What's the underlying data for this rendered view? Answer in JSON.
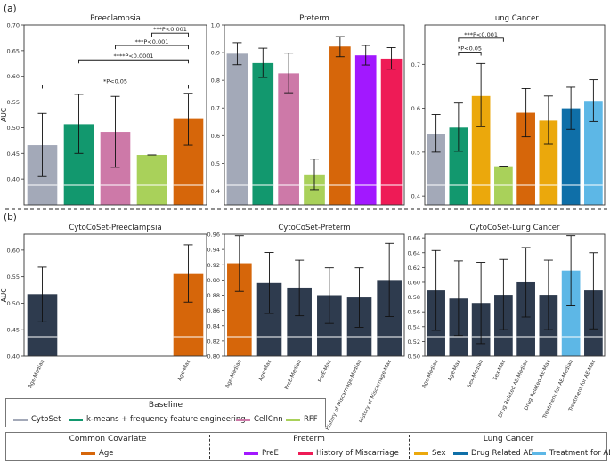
{
  "panel_labels": {
    "a": "(a)",
    "b": "(b)"
  },
  "ylabel": "AUC",
  "colors": {
    "CytoSet": "#a3a9b8",
    "kmeans": "#12986e",
    "CellCnn": "#cd79a8",
    "RFF": "#a9d15a",
    "Age": "#d6660a",
    "PreE": "#a218ff",
    "HistMisc": "#ee1b56",
    "Sex": "#eba80c",
    "DrugAE": "#0f6fa8",
    "TreatAE": "#5db7e6",
    "Dark": "#2e3b4e"
  },
  "chart_data": [
    {
      "id": "a1",
      "type": "bar",
      "title": "Preeclampsia",
      "ylim": [
        0.35,
        0.7
      ],
      "yticks": [
        "0.40",
        "0.45",
        "0.50",
        "0.55",
        "0.60",
        "0.65",
        "0.70"
      ],
      "yticks_v": [
        0.4,
        0.45,
        0.5,
        0.55,
        0.6,
        0.65,
        0.7
      ],
      "bars": [
        {
          "color": "CytoSet",
          "value": 0.466,
          "lo": 0.405,
          "hi": 0.528
        },
        {
          "color": "kmeans",
          "value": 0.507,
          "lo": 0.45,
          "hi": 0.565
        },
        {
          "color": "CellCnn",
          "value": 0.492,
          "lo": 0.423,
          "hi": 0.561
        },
        {
          "color": "RFF",
          "value": 0.447,
          "lo": 0.447,
          "hi": 0.447
        },
        {
          "color": "Age",
          "value": 0.517,
          "lo": 0.466,
          "hi": 0.567
        }
      ],
      "sig": [
        {
          "from": 3,
          "to": 4,
          "y": 0.684,
          "label": "***P<0.001"
        },
        {
          "from": 2,
          "to": 4,
          "y": 0.66,
          "label": "***P<0.001"
        },
        {
          "from": 1,
          "to": 4,
          "y": 0.632,
          "label": "****P<0.0001"
        },
        {
          "from": 0,
          "to": 4,
          "y": 0.583,
          "label": "*P<0.05"
        }
      ]
    },
    {
      "id": "a2",
      "type": "bar",
      "title": "Preterm",
      "ylim": [
        0.35,
        1.0
      ],
      "yticks": [
        "0.4",
        "0.5",
        "0.6",
        "0.7",
        "0.8",
        "0.9",
        "1.0"
      ],
      "yticks_v": [
        0.4,
        0.5,
        0.6,
        0.7,
        0.8,
        0.9,
        1.0
      ],
      "bars": [
        {
          "color": "CytoSet",
          "value": 0.896,
          "lo": 0.856,
          "hi": 0.936
        },
        {
          "color": "kmeans",
          "value": 0.862,
          "lo": 0.81,
          "hi": 0.916
        },
        {
          "color": "CellCnn",
          "value": 0.825,
          "lo": 0.755,
          "hi": 0.898
        },
        {
          "color": "RFF",
          "value": 0.46,
          "lo": 0.405,
          "hi": 0.515
        },
        {
          "color": "Age",
          "value": 0.922,
          "lo": 0.885,
          "hi": 0.958
        },
        {
          "color": "PreE",
          "value": 0.89,
          "lo": 0.855,
          "hi": 0.926
        },
        {
          "color": "HistMisc",
          "value": 0.878,
          "lo": 0.84,
          "hi": 0.918
        }
      ],
      "sig": []
    },
    {
      "id": "a3",
      "type": "bar",
      "title": "Lung Cancer",
      "ylim": [
        0.38,
        0.79
      ],
      "yticks": [
        "0.4",
        "0.5",
        "0.6",
        "0.7"
      ],
      "yticks_v": [
        0.4,
        0.5,
        0.6,
        0.7
      ],
      "bars": [
        {
          "color": "CytoSet",
          "value": 0.541,
          "lo": 0.5,
          "hi": 0.586
        },
        {
          "color": "kmeans",
          "value": 0.556,
          "lo": 0.502,
          "hi": 0.612
        },
        {
          "color": "Sex",
          "value": 0.628,
          "lo": 0.558,
          "hi": 0.702
        },
        {
          "color": "RFF",
          "value": 0.468,
          "lo": 0.468,
          "hi": 0.468
        },
        {
          "color": "Age",
          "value": 0.59,
          "lo": 0.535,
          "hi": 0.645
        },
        {
          "color": "Sex",
          "value": 0.572,
          "lo": 0.518,
          "hi": 0.628
        },
        {
          "color": "DrugAE",
          "value": 0.6,
          "lo": 0.552,
          "hi": 0.648
        },
        {
          "color": "TreatAE",
          "value": 0.617,
          "lo": 0.57,
          "hi": 0.665
        }
      ],
      "sig": [
        {
          "from": 1,
          "to": 3,
          "y": 0.76,
          "label": "***P<0.001"
        },
        {
          "from": 1,
          "to": 2,
          "y": 0.728,
          "label": "*P<0.05"
        }
      ]
    },
    {
      "id": "b1",
      "type": "bar",
      "title": "CytoCoSet-Preeclampsia",
      "ylim": [
        0.4,
        0.63
      ],
      "yticks": [
        "0.40",
        "0.45",
        "0.50",
        "0.55",
        "0.60"
      ],
      "yticks_v": [
        0.4,
        0.45,
        0.5,
        0.55,
        0.6
      ],
      "categories": [
        "Age-Median",
        "",
        "",
        "",
        "Age-Max"
      ],
      "bars": [
        {
          "color": "Dark",
          "value": 0.517,
          "lo": 0.465,
          "hi": 0.568
        },
        null,
        null,
        null,
        {
          "color": "Age",
          "value": 0.555,
          "lo": 0.502,
          "hi": 0.61
        }
      ],
      "sig": []
    },
    {
      "id": "b2",
      "type": "bar",
      "title": "CytoCoSet-Preterm",
      "ylim": [
        0.8,
        0.96
      ],
      "yticks": [
        "0.80",
        "0.82",
        "0.84",
        "0.86",
        "0.88",
        "0.90",
        "0.92",
        "0.94",
        "0.96"
      ],
      "yticks_v": [
        0.8,
        0.82,
        0.84,
        0.86,
        0.88,
        0.9,
        0.92,
        0.94,
        0.96
      ],
      "categories": [
        "Age-Median",
        "Age-Max",
        "PreE-Median",
        "PreE-Max",
        "History of Miscarriage-Median",
        "History of Miscarriage-Max"
      ],
      "bars": [
        {
          "color": "Age",
          "value": 0.922,
          "lo": 0.885,
          "hi": 0.958
        },
        {
          "color": "Dark",
          "value": 0.896,
          "lo": 0.856,
          "hi": 0.936
        },
        {
          "color": "Dark",
          "value": 0.89,
          "lo": 0.853,
          "hi": 0.926
        },
        {
          "color": "Dark",
          "value": 0.88,
          "lo": 0.843,
          "hi": 0.916
        },
        {
          "color": "Dark",
          "value": 0.877,
          "lo": 0.838,
          "hi": 0.916
        },
        {
          "color": "Dark",
          "value": 0.9,
          "lo": 0.852,
          "hi": 0.948
        }
      ],
      "sig": []
    },
    {
      "id": "b3",
      "type": "bar",
      "title": "CytoCoSet-Lung Cancer",
      "ylim": [
        0.5,
        0.665
      ],
      "yticks": [
        "0.50",
        "0.52",
        "0.54",
        "0.56",
        "0.58",
        "0.60",
        "0.62",
        "0.64",
        "0.66"
      ],
      "yticks_v": [
        0.5,
        0.52,
        0.54,
        0.56,
        0.58,
        0.6,
        0.62,
        0.64,
        0.66
      ],
      "categories": [
        "Age-Median",
        "Age-Max",
        "Sex-Median",
        "Sex-Max",
        "Drug Related AE-Median",
        "Drug Related AE-Max",
        "Treatment for AE-Median",
        "Treatment for AE-Max"
      ],
      "bars": [
        {
          "color": "Dark",
          "value": 0.589,
          "lo": 0.535,
          "hi": 0.643
        },
        {
          "color": "Dark",
          "value": 0.578,
          "lo": 0.528,
          "hi": 0.629
        },
        {
          "color": "Dark",
          "value": 0.572,
          "lo": 0.517,
          "hi": 0.627
        },
        {
          "color": "Dark",
          "value": 0.583,
          "lo": 0.536,
          "hi": 0.631
        },
        {
          "color": "Dark",
          "value": 0.6,
          "lo": 0.553,
          "hi": 0.647
        },
        {
          "color": "Dark",
          "value": 0.583,
          "lo": 0.536,
          "hi": 0.63
        },
        {
          "color": "TreatAE",
          "value": 0.616,
          "lo": 0.568,
          "hi": 0.663
        },
        {
          "color": "Dark",
          "value": 0.589,
          "lo": 0.537,
          "hi": 0.64
        }
      ],
      "sig": []
    }
  ],
  "legend": {
    "baseline": {
      "title": "Baseline",
      "items": [
        {
          "label": "CytoSet",
          "color": "#a3a9b8"
        },
        {
          "label": "k-means + frequency feature engineering",
          "color": "#12986e"
        },
        {
          "label": "CellCnn",
          "color": "#cd79a8"
        },
        {
          "label": "RFF",
          "color": "#a9d15a"
        }
      ]
    },
    "covariates": {
      "groups": [
        {
          "title": "Common Covariate",
          "items": [
            {
              "label": "Age",
              "color": "#d6660a"
            }
          ]
        },
        {
          "title": "Preterm",
          "items": [
            {
              "label": "PreE",
              "color": "#a218ff"
            },
            {
              "label": "History of Miscarriage",
              "color": "#ee1b56"
            }
          ]
        },
        {
          "title": "Lung Cancer",
          "items": [
            {
              "label": "Sex",
              "color": "#eba80c"
            },
            {
              "label": "Drug Related AE",
              "color": "#0f6fa8"
            },
            {
              "label": "Treatment for AE",
              "color": "#5db7e6"
            }
          ]
        }
      ]
    }
  }
}
